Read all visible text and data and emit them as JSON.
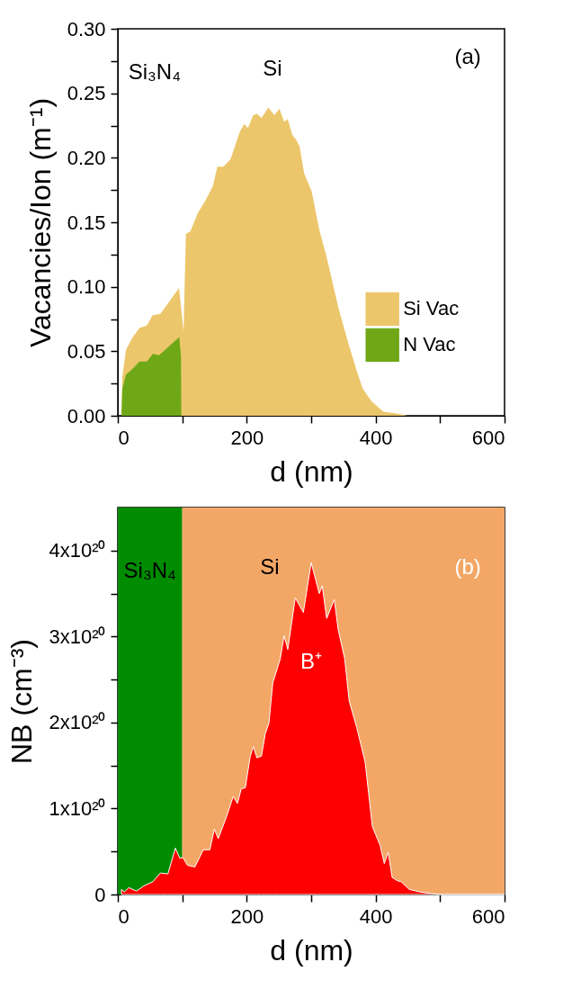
{
  "chart_data": [
    {
      "type": "area",
      "xlabel": "d (nm)",
      "ylabel": "Vacancies/Ion (m⁻¹)",
      "xlim": [
        0,
        600
      ],
      "xticks": [
        0,
        {
          "value": 100,
          "label": null
        },
        200,
        {
          "value": 300,
          "label": null
        },
        400,
        {
          "value": 500,
          "label": null
        },
        600
      ],
      "ylim": [
        0,
        0.3
      ],
      "yticks": [
        {
          "value": 0,
          "label": "0.00"
        },
        {
          "value": 0.025,
          "label": null
        },
        {
          "value": 0.05,
          "label": "0.05"
        },
        {
          "value": 0.075,
          "label": null
        },
        {
          "value": 0.1,
          "label": "0.10"
        },
        {
          "value": 0.125,
          "label": null
        },
        {
          "value": 0.15,
          "label": "0.15"
        },
        {
          "value": 0.175,
          "label": null
        },
        {
          "value": 0.2,
          "label": "0.20"
        },
        {
          "value": 0.225,
          "label": null
        },
        {
          "value": 0.25,
          "label": "0.25"
        },
        {
          "value": 0.275,
          "label": null
        },
        {
          "value": 0.3,
          "label": "0.30"
        }
      ],
      "legend": "right",
      "series": [
        {
          "name": "Si Vac",
          "color": "#ecc66b",
          "x": [
            5.6,
            7,
            12.6,
            22,
            33.5,
            45,
            54,
            66,
            82,
            95,
            102,
            105.6,
            112.6,
            124,
            135.9,
            147.5,
            154.4,
            163.7,
            175,
            189,
            196,
            202,
            210,
            216,
            223,
            233.5,
            243,
            250.7,
            258,
            263.5,
            270.5,
            276.5,
            282,
            289,
            300.7,
            312.6,
            324,
            342.6,
            356.5,
            370.5,
            380,
            394,
            412.6,
            431,
            449.6,
            460
          ],
          "values": [
            0,
            0.03,
            0.051,
            0.06,
            0.068,
            0.07,
            0.078,
            0.079,
            0.09,
            0.099,
            0.065,
            0.141,
            0.143,
            0.157,
            0.167,
            0.178,
            0.193,
            0.193,
            0.199,
            0.22,
            0.226,
            0.223,
            0.233,
            0.234,
            0.231,
            0.239,
            0.233,
            0.238,
            0.228,
            0.23,
            0.218,
            0.214,
            0.209,
            0.188,
            0.174,
            0.144,
            0.123,
            0.083,
            0.058,
            0.035,
            0.021,
            0.011,
            0.003,
            0.002,
            0,
            0
          ]
        },
        {
          "name": "N Vac",
          "color": "#6fa817",
          "x": [
            5.6,
            7,
            12.6,
            22,
            33.5,
            45,
            54.4,
            64,
            77.7,
            95.3,
            98,
            98.5
          ],
          "values": [
            0,
            0.021,
            0.032,
            0.036,
            0.042,
            0.042,
            0.048,
            0.047,
            0.053,
            0.061,
            0.046,
            0
          ]
        }
      ],
      "annotations": [
        "Si₃N₄",
        "Si",
        "(a)"
      ]
    },
    {
      "type": "area",
      "xlabel": "d (nm)",
      "ylabel": "NB (cm⁻³)",
      "xlim": [
        0,
        600
      ],
      "xticks": [
        0,
        {
          "value": 100,
          "label": null
        },
        200,
        {
          "value": 300,
          "label": null
        },
        400,
        {
          "value": 500,
          "label": null
        },
        600
      ],
      "ylim": [
        0,
        4.5e+20
      ],
      "yticks": [
        0,
        {
          "value": 5e+19,
          "label": null
        },
        {
          "value": 1e+20,
          "label": "1x10²⁰"
        },
        {
          "value": 1.5e+20,
          "label": null
        },
        {
          "value": 2e+20,
          "label": "2x10²⁰"
        },
        {
          "value": 2.5e+20,
          "label": null
        },
        {
          "value": 3e+20,
          "label": "3x10²⁰"
        },
        {
          "value": 3.5e+20,
          "label": null
        },
        {
          "value": 4e+20,
          "label": "4x10²⁰"
        }
      ],
      "bands": [
        {
          "axis": "x",
          "from": 0,
          "to": 100,
          "color": "#008c00"
        },
        {
          "axis": "x",
          "from": 100,
          "to": 600,
          "color": "#f3a766"
        }
      ],
      "series": [
        {
          "name": "B⁺",
          "color": "#ff0000",
          "x": [
            5.6,
            10.2,
            17,
            29,
            40.5,
            54.4,
            66,
            77.7,
            89.3,
            96.3,
            101,
            108,
            119.6,
            132.6,
            142.8,
            149.7,
            155.8,
            168.4,
            179,
            185.6,
            191.6,
            197.8,
            205.5,
            210.3,
            215.8,
            222.8,
            228.8,
            234.4,
            240.4,
            252,
            258,
            263.7,
            275.3,
            287.9,
            300,
            312.5,
            317.2,
            324,
            335.8,
            341.9,
            352,
            359,
            370.7,
            383.7,
            394.9,
            407,
            413.4,
            419.5,
            425.6,
            433.5,
            439.5,
            452,
            468.4,
            487,
            500,
            600
          ],
          "values": [
            6e+18,
            3e+18,
            8e+18,
            4e+18,
            1e+19,
            1.5e+19,
            2.5e+19,
            2.4e+19,
            5.4e+19,
            4.2e+19,
            4.3e+19,
            3.4e+19,
            3.2e+19,
            5.2e+19,
            5.2e+19,
            7.6e+19,
            6.5e+19,
            9e+19,
            1.14e+20,
            1.06e+20,
            1.23e+20,
            1.24e+20,
            1.61e+20,
            1.72e+20,
            1.59e+20,
            1.61e+20,
            1.87e+20,
            1.99e+20,
            2.46e+20,
            2.74e+20,
            3.01e+20,
            2.85e+20,
            3.45e+20,
            3.28e+20,
            3.86e+20,
            3.5e+20,
            3.59e+20,
            3.21e+20,
            3.43e+20,
            3.08e+20,
            2.74e+20,
            2.25e+20,
            1.94e+20,
            1.54e+20,
            7.9e+19,
            5.7e+19,
            3.6e+19,
            4.9e+19,
            2e+19,
            1.6e+19,
            1.5e+19,
            6e+18,
            3e+18,
            1e+18,
            0,
            0
          ]
        }
      ],
      "annotations": [
        "Si₃N₄",
        "Si",
        "(b)"
      ]
    }
  ]
}
